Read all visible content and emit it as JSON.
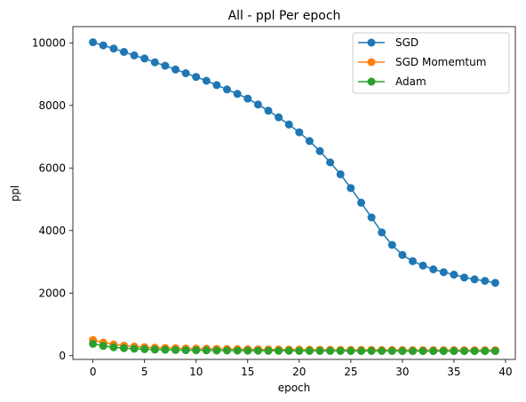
{
  "chart_data": {
    "type": "line",
    "title": "All - ppl Per epoch",
    "xlabel": "epoch",
    "ylabel": "ppl",
    "xlim": [
      -1.95,
      40.95
    ],
    "ylim": [
      -120,
      10520
    ],
    "xticks": [
      0,
      5,
      10,
      15,
      20,
      25,
      30,
      35,
      40
    ],
    "yticks": [
      0,
      2000,
      4000,
      6000,
      8000,
      10000
    ],
    "grid": false,
    "legend_position": "upper right",
    "x": [
      0,
      1,
      2,
      3,
      4,
      5,
      6,
      7,
      8,
      9,
      10,
      11,
      12,
      13,
      14,
      15,
      16,
      17,
      18,
      19,
      20,
      21,
      22,
      23,
      24,
      25,
      26,
      27,
      28,
      29,
      30,
      31,
      32,
      33,
      34,
      35,
      36,
      37,
      38,
      39
    ],
    "series": [
      {
        "name": "SGD",
        "color": "#1f77b4",
        "values": [
          10020,
          9920,
          9820,
          9710,
          9600,
          9500,
          9380,
          9270,
          9150,
          9030,
          8910,
          8790,
          8650,
          8510,
          8370,
          8220,
          8030,
          7830,
          7620,
          7390,
          7140,
          6860,
          6540,
          6180,
          5800,
          5360,
          4890,
          4420,
          3940,
          3540,
          3220,
          3020,
          2880,
          2760,
          2670,
          2590,
          2500,
          2440,
          2390,
          2330
        ]
      },
      {
        "name": "SGD Momemtum",
        "color": "#ff7f0e",
        "values": [
          500,
          420,
          360,
          320,
          290,
          270,
          255,
          245,
          238,
          232,
          226,
          222,
          218,
          214,
          210,
          207,
          204,
          201,
          198,
          196,
          194,
          192,
          190,
          188,
          186,
          185,
          184,
          183,
          182,
          181,
          180,
          179,
          178,
          178,
          177,
          177,
          176,
          176,
          175,
          175
        ]
      },
      {
        "name": "Adam",
        "color": "#2ca02c",
        "values": [
          380,
          310,
          270,
          240,
          220,
          205,
          195,
          188,
          182,
          176,
          172,
          168,
          165,
          163,
          161,
          159,
          157,
          156,
          155,
          154,
          153,
          152,
          152,
          151,
          151,
          150,
          150,
          149,
          149,
          149,
          148,
          148,
          148,
          147,
          147,
          147,
          147,
          146,
          146,
          146
        ]
      }
    ]
  }
}
